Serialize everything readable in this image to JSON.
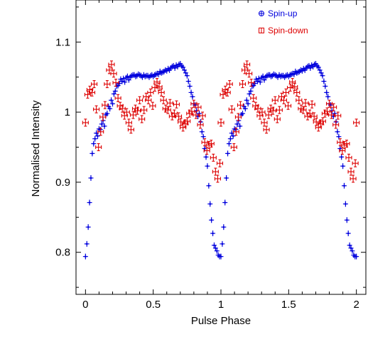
{
  "chart_data": {
    "type": "scatter",
    "title": "",
    "xlabel": "Pulse Phase",
    "ylabel": "Normalised Intensity",
    "xlim": [
      -0.07,
      2.07
    ],
    "ylim": [
      0.74,
      1.16
    ],
    "x_ticks": [
      {
        "value": 0,
        "label": "0"
      },
      {
        "value": 0.5,
        "label": "0.5"
      },
      {
        "value": 1,
        "label": "1"
      },
      {
        "value": 1.5,
        "label": "1.5"
      },
      {
        "value": 2,
        "label": "2"
      }
    ],
    "y_ticks": [
      {
        "value": 0.8,
        "label": "0.8"
      },
      {
        "value": 0.9,
        "label": "0.9"
      },
      {
        "value": 1.0,
        "label": "1"
      },
      {
        "value": 1.1,
        "label": "1.1"
      }
    ],
    "grid": false,
    "legend_position": "top-right",
    "periodic": true,
    "series": [
      {
        "name": "Spin-up",
        "color": "#0000dd",
        "marker": "circle-plus",
        "x": [
          0.0,
          0.01,
          0.02,
          0.03,
          0.04,
          0.05,
          0.06,
          0.07,
          0.08,
          0.09,
          0.1,
          0.11,
          0.12,
          0.13,
          0.14,
          0.15,
          0.16,
          0.17,
          0.18,
          0.19,
          0.2,
          0.21,
          0.22,
          0.23,
          0.24,
          0.25,
          0.26,
          0.27,
          0.28,
          0.29,
          0.3,
          0.31,
          0.32,
          0.33,
          0.34,
          0.35,
          0.36,
          0.37,
          0.38,
          0.39,
          0.4,
          0.41,
          0.42,
          0.43,
          0.44,
          0.45,
          0.46,
          0.47,
          0.48,
          0.49,
          0.5,
          0.51,
          0.52,
          0.53,
          0.54,
          0.55,
          0.56,
          0.57,
          0.58,
          0.59,
          0.6,
          0.61,
          0.62,
          0.63,
          0.64,
          0.65,
          0.66,
          0.67,
          0.68,
          0.69,
          0.7,
          0.71,
          0.72,
          0.73,
          0.74,
          0.75,
          0.76,
          0.77,
          0.78,
          0.79,
          0.8,
          0.81,
          0.82,
          0.83,
          0.84,
          0.85,
          0.86,
          0.87,
          0.88,
          0.89,
          0.9,
          0.91,
          0.92,
          0.93,
          0.94,
          0.95,
          0.96,
          0.97,
          0.98,
          0.99
        ],
        "y": [
          0.794,
          0.812,
          0.836,
          0.871,
          0.906,
          0.941,
          0.955,
          0.962,
          0.97,
          0.966,
          0.976,
          0.975,
          0.983,
          0.988,
          0.98,
          0.996,
          0.998,
          1.008,
          1.005,
          1.017,
          1.012,
          1.026,
          1.03,
          1.037,
          1.038,
          1.041,
          1.047,
          1.044,
          1.048,
          1.043,
          1.049,
          1.051,
          1.046,
          1.05,
          1.052,
          1.053,
          1.053,
          1.051,
          1.052,
          1.054,
          1.053,
          1.052,
          1.05,
          1.053,
          1.051,
          1.052,
          1.052,
          1.05,
          1.052,
          1.053,
          1.051,
          1.053,
          1.054,
          1.055,
          1.054,
          1.058,
          1.056,
          1.057,
          1.058,
          1.06,
          1.059,
          1.062,
          1.06,
          1.063,
          1.065,
          1.066,
          1.063,
          1.067,
          1.065,
          1.068,
          1.069,
          1.066,
          1.064,
          1.06,
          1.056,
          1.052,
          1.044,
          1.037,
          1.028,
          1.022,
          1.012,
          1.01,
          1.002,
          0.994,
          0.998,
          0.986,
          0.972,
          0.965,
          0.948,
          0.936,
          0.923,
          0.895,
          0.869,
          0.846,
          0.827,
          0.81,
          0.806,
          0.802,
          0.796,
          0.794
        ]
      },
      {
        "name": "Spin-down",
        "color": "#dd0000",
        "marker": "square-bracket",
        "x": [
          0.0,
          0.016,
          0.032,
          0.048,
          0.064,
          0.08,
          0.096,
          0.112,
          0.128,
          0.144,
          0.16,
          0.176,
          0.192,
          0.208,
          0.224,
          0.24,
          0.256,
          0.272,
          0.288,
          0.304,
          0.32,
          0.336,
          0.352,
          0.368,
          0.384,
          0.4,
          0.416,
          0.432,
          0.448,
          0.464,
          0.48,
          0.496,
          0.512,
          0.528,
          0.544,
          0.56,
          0.576,
          0.592,
          0.608,
          0.624,
          0.64,
          0.656,
          0.672,
          0.688,
          0.704,
          0.72,
          0.736,
          0.752,
          0.768,
          0.784,
          0.8,
          0.816,
          0.832,
          0.848,
          0.864,
          0.88,
          0.896,
          0.912,
          0.928,
          0.944,
          0.96,
          0.976,
          0.992
        ],
        "y": [
          0.985,
          1.025,
          1.032,
          1.028,
          1.04,
          1.004,
          0.95,
          0.972,
          0.993,
          1.01,
          1.04,
          1.06,
          1.068,
          1.055,
          1.042,
          1.02,
          1.009,
          1.005,
          0.995,
          1.0,
          0.985,
          0.975,
          0.996,
          1.005,
          1.002,
          1.017,
          0.99,
          1.003,
          1.022,
          1.017,
          1.028,
          1.009,
          1.035,
          1.043,
          1.036,
          1.028,
          1.017,
          1.005,
          1.003,
          1.013,
          0.994,
          0.998,
          1.011,
          0.994,
          0.986,
          0.978,
          0.984,
          0.987,
          0.998,
          1.001,
          1.012,
          0.996,
          1.007,
          0.982,
          0.995,
          0.957,
          0.945,
          0.953,
          0.955,
          0.935,
          0.915,
          0.905,
          0.927
        ]
      }
    ]
  }
}
